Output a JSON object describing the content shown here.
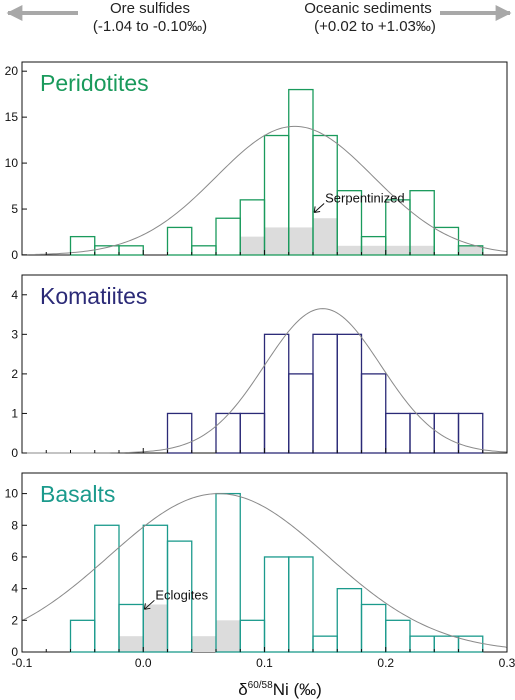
{
  "header": {
    "left_line1": "Ore sulfides",
    "left_line2": "(-1.04 to -0.10‰)",
    "right_line1": "Oceanic sediments",
    "right_line2": "(+0.02 to +1.03‰)",
    "arrow_color": "#a8a8a8"
  },
  "colors": {
    "peridotites": "#1a9a5c",
    "komatiites": "#2b2a77",
    "basalts": "#1b9a8c",
    "fill": "#dcdcdc",
    "curve": "#8a8a8a"
  },
  "chart_data": [
    {
      "type": "bar",
      "title": "Peridotites",
      "x": [
        -0.05,
        -0.03,
        -0.01,
        0.01,
        0.03,
        0.05,
        0.07,
        0.09,
        0.11,
        0.13,
        0.15,
        0.17,
        0.19,
        0.21,
        0.23,
        0.25,
        0.27
      ],
      "bin_width": 0.02,
      "values": [
        2,
        1,
        1,
        0,
        3,
        1,
        4,
        6,
        13,
        18,
        13,
        7,
        2,
        6,
        7,
        3,
        1
      ],
      "highlighted_values": [
        0,
        0,
        0,
        0,
        0,
        0,
        0,
        2,
        3,
        3,
        4,
        1,
        1,
        1,
        1,
        0,
        1
      ],
      "ylim": [
        0,
        21
      ],
      "yticks": [
        "0",
        "5",
        "10",
        "15",
        "20"
      ],
      "curve": {
        "mean": 0.125,
        "sd": 0.065,
        "peak": 14
      },
      "annotation": {
        "text": "Serpentinized",
        "x": 0.15,
        "y": 5.5
      }
    },
    {
      "type": "bar",
      "title": "Komatiites",
      "x": [
        0.03,
        0.05,
        0.07,
        0.09,
        0.11,
        0.13,
        0.15,
        0.17,
        0.19,
        0.21,
        0.23,
        0.25,
        0.27
      ],
      "bin_width": 0.02,
      "values": [
        1,
        0,
        1,
        1,
        3,
        2,
        3,
        3,
        2,
        1,
        1,
        1,
        1
      ],
      "ylim": [
        0,
        4.5
      ],
      "yticks": [
        "0",
        "1",
        "2",
        "3",
        "4"
      ],
      "curve": {
        "mean": 0.148,
        "sd": 0.048,
        "peak": 3.65
      },
      "annotation": null
    },
    {
      "type": "bar",
      "title": "Basalts",
      "x": [
        -0.05,
        -0.03,
        -0.01,
        0.01,
        0.03,
        0.05,
        0.07,
        0.09,
        0.11,
        0.13,
        0.15,
        0.17,
        0.19,
        0.21,
        0.23,
        0.25,
        0.27
      ],
      "bin_width": 0.02,
      "values": [
        2,
        8,
        3,
        8,
        7,
        0,
        10,
        2,
        6,
        6,
        1,
        4,
        3,
        2,
        1,
        1,
        1
      ],
      "highlighted_values": [
        0,
        0,
        1,
        3,
        0,
        1,
        2,
        0,
        0,
        0,
        0,
        0,
        0,
        0,
        0,
        0,
        0
      ],
      "ylim": [
        0,
        11.3
      ],
      "yticks": [
        "0",
        "2",
        "4",
        "6",
        "8",
        "10"
      ],
      "curve": {
        "mean": 0.062,
        "sd": 0.09,
        "peak": 10
      },
      "annotation": {
        "text": "Eclogites",
        "x": 0.01,
        "y": 3.2
      },
      "xlim": [
        -0.1,
        0.3
      ],
      "xticks": [
        "-0.1",
        "0.0",
        "0.1",
        "0.2",
        "0.3"
      ],
      "xlabel": "δ60/58Ni (‰)",
      "xlabel_parts": {
        "prefix": "δ",
        "superscript": "60/58",
        "suffix": "Ni (‰)"
      }
    }
  ]
}
